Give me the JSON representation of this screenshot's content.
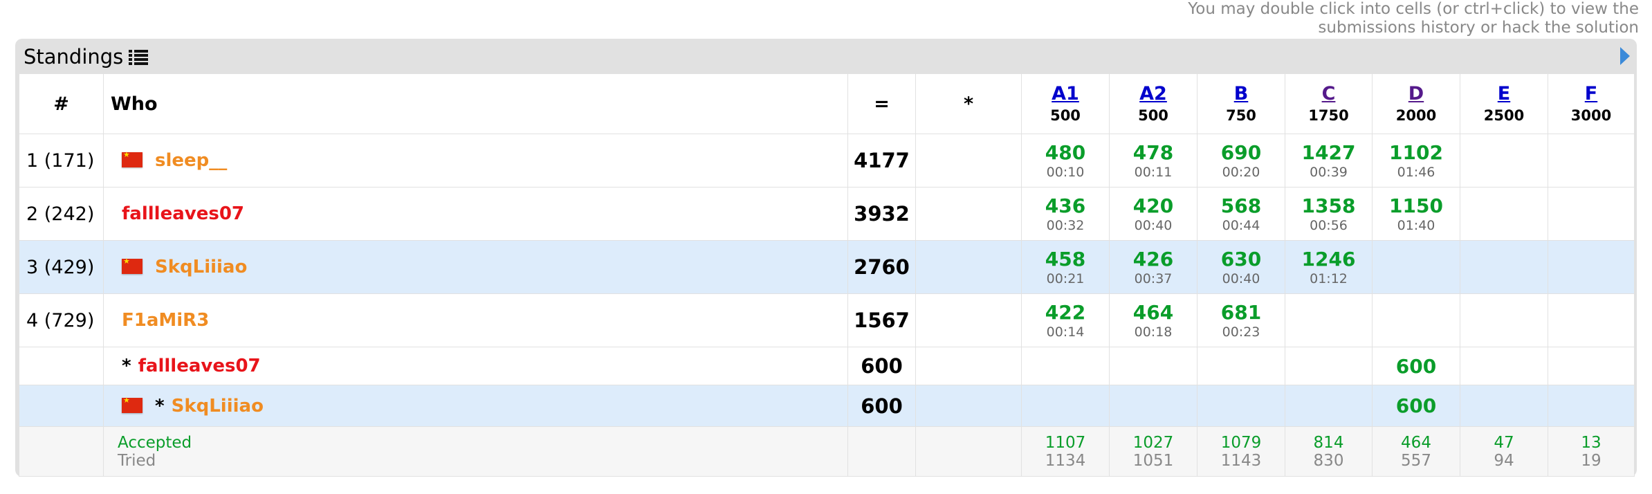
{
  "hint": {
    "line1": "You may double click into cells (or ctrl+click) to view the",
    "line2": "submissions history or hack the solution"
  },
  "panel": {
    "title": "Standings"
  },
  "table": {
    "headers": {
      "rank": "#",
      "who": "Who",
      "score": "=",
      "penalty": "*"
    },
    "problems": [
      {
        "letter": "A1",
        "points": "500",
        "visited": false
      },
      {
        "letter": "A2",
        "points": "500",
        "visited": false
      },
      {
        "letter": "B",
        "points": "750",
        "visited": false
      },
      {
        "letter": "C",
        "points": "1750",
        "visited": true
      },
      {
        "letter": "D",
        "points": "2000",
        "visited": true
      },
      {
        "letter": "E",
        "points": "2500",
        "visited": false
      },
      {
        "letter": "F",
        "points": "3000",
        "visited": false
      }
    ],
    "rows": [
      {
        "rank": "1 (171)",
        "handle": "sleep__",
        "flag": true,
        "score": "4177",
        "cells": [
          {
            "pts": "480",
            "time": "00:10"
          },
          {
            "pts": "478",
            "time": "00:11"
          },
          {
            "pts": "690",
            "time": "00:20"
          },
          {
            "pts": "1427",
            "time": "00:39"
          },
          {
            "pts": "1102",
            "time": "01:46"
          },
          {
            "pts": "",
            "time": ""
          },
          {
            "pts": "",
            "time": ""
          }
        ]
      },
      {
        "rank": "2 (242)",
        "handle": "fallleaves07",
        "flag": false,
        "score": "3932",
        "cells": [
          {
            "pts": "436",
            "time": "00:32"
          },
          {
            "pts": "420",
            "time": "00:40"
          },
          {
            "pts": "568",
            "time": "00:44"
          },
          {
            "pts": "1358",
            "time": "00:56"
          },
          {
            "pts": "1150",
            "time": "01:40"
          },
          {
            "pts": "",
            "time": ""
          },
          {
            "pts": "",
            "time": ""
          }
        ]
      },
      {
        "rank": "3 (429)",
        "handle": "SkqLiiiao",
        "flag": true,
        "score": "2760",
        "cells": [
          {
            "pts": "458",
            "time": "00:21"
          },
          {
            "pts": "426",
            "time": "00:37"
          },
          {
            "pts": "630",
            "time": "00:40"
          },
          {
            "pts": "1246",
            "time": "01:12"
          },
          {
            "pts": "",
            "time": ""
          },
          {
            "pts": "",
            "time": ""
          },
          {
            "pts": "",
            "time": ""
          }
        ]
      },
      {
        "rank": "4 (729)",
        "handle": "F1aMiR3",
        "flag": false,
        "score": "1567",
        "cells": [
          {
            "pts": "422",
            "time": "00:14"
          },
          {
            "pts": "464",
            "time": "00:18"
          },
          {
            "pts": "681",
            "time": "00:23"
          },
          {
            "pts": "",
            "time": ""
          },
          {
            "pts": "",
            "time": ""
          },
          {
            "pts": "",
            "time": ""
          },
          {
            "pts": "",
            "time": ""
          }
        ]
      }
    ],
    "unofficial": [
      {
        "star": "*",
        "handle": "fallleaves07",
        "flag": false,
        "score": "600",
        "d_pts": "600"
      },
      {
        "star": "*",
        "handle": "SkqLiiiao",
        "flag": true,
        "score": "600",
        "d_pts": "600"
      }
    ],
    "summary": {
      "accepted_label": "Accepted",
      "tried_label": "Tried",
      "accepted": [
        "1107",
        "1027",
        "1079",
        "814",
        "464",
        "47",
        "13"
      ],
      "tried": [
        "1134",
        "1051",
        "1143",
        "830",
        "557",
        "94",
        "19"
      ]
    }
  },
  "colors": {
    "accepted": "#0a9d2a",
    "handle_orange": "#f08c22",
    "handle_red": "#e8141a",
    "highlight_row": "#ddecfb",
    "frame": "#e1e1e1"
  }
}
